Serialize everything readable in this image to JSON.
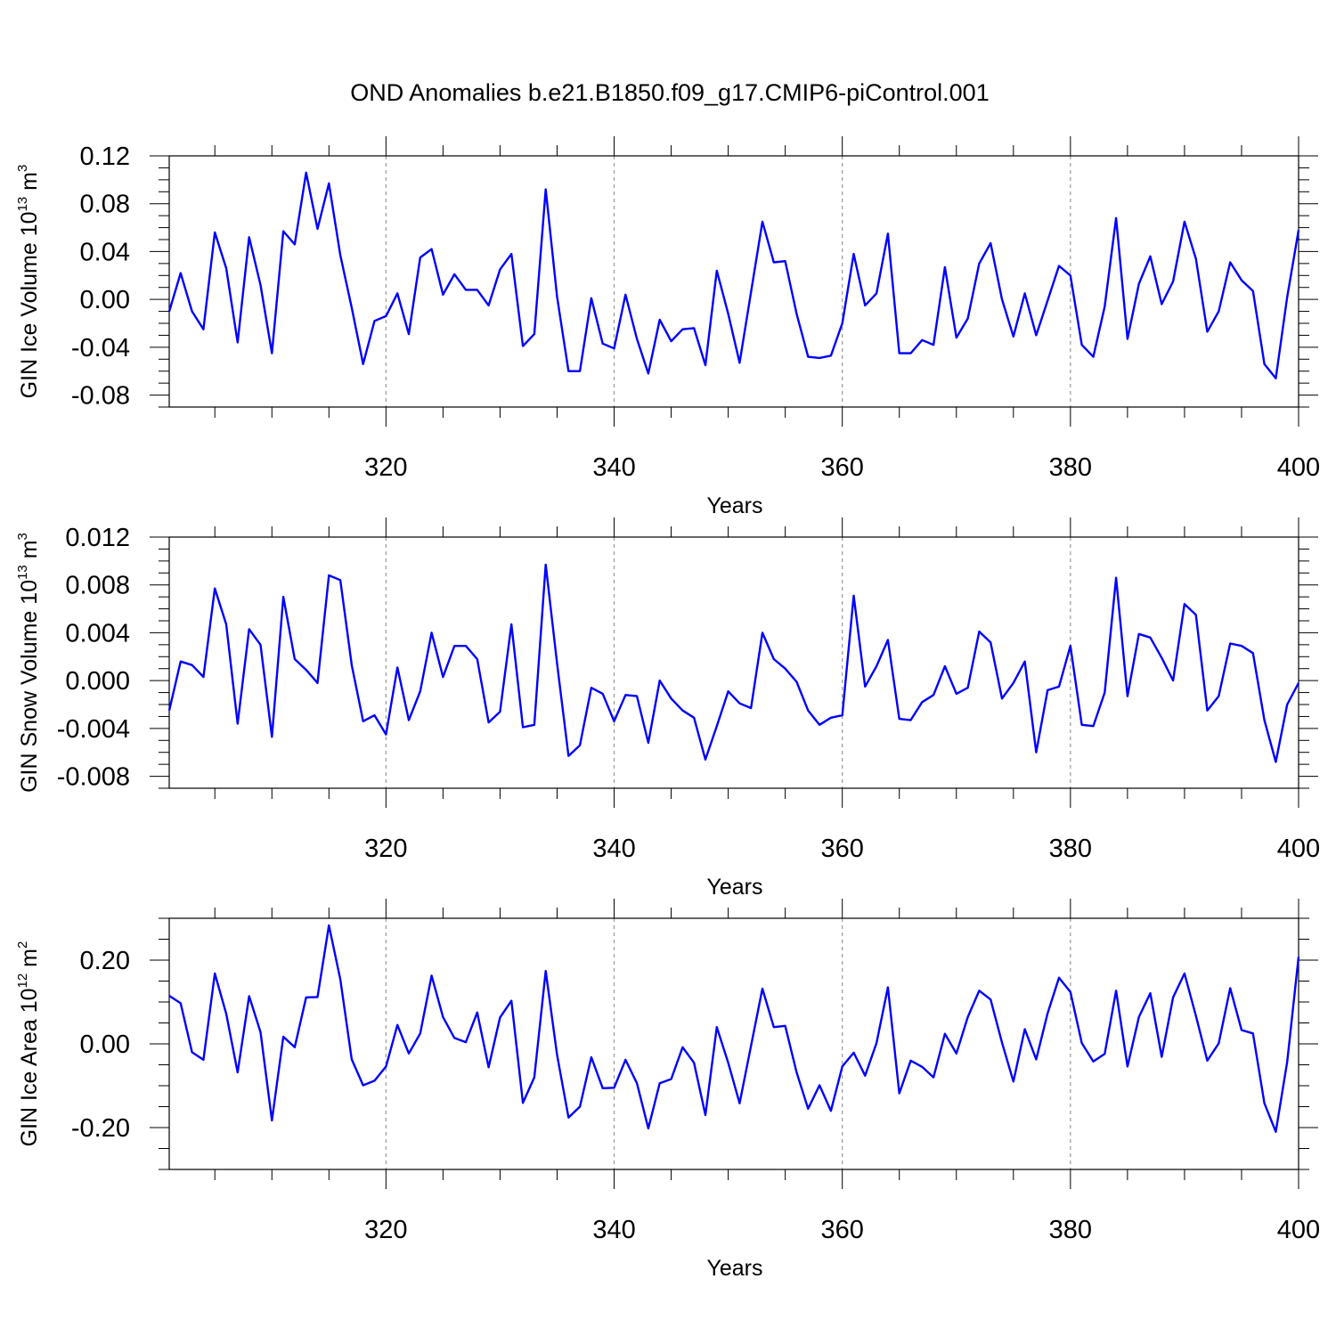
{
  "chart_data": {
    "type": "line",
    "title": "OND Anomalies b.e21.B1850.f09_g17.CMIP6-piControl.001",
    "series_color": "#0000ff",
    "panels": [
      {
        "name": "ice-volume",
        "ylabel_main": "GIN Ice Volume 10",
        "ylabel_sup": "13",
        "ylabel_unit": " m",
        "ylabel_unit_sup": "3",
        "xlabel": "Years",
        "xlim": [
          301,
          400
        ],
        "ylim": [
          -0.09,
          0.12
        ],
        "yticks": [
          -0.08,
          -0.04,
          0.0,
          0.04,
          0.08,
          0.12
        ],
        "yticklabels": [
          "-0.08",
          "-0.04",
          "0.00",
          "0.04",
          "0.08",
          "0.12"
        ],
        "yminor": 0.01,
        "xticks": [
          320,
          340,
          360,
          380,
          400
        ],
        "xticklabels": [
          "320",
          "340",
          "360",
          "380",
          "400"
        ],
        "x_start": 301,
        "values": [
          -0.01,
          0.022,
          -0.01,
          -0.025,
          0.056,
          0.026,
          -0.036,
          0.052,
          0.012,
          -0.045,
          0.057,
          0.046,
          0.106,
          0.059,
          0.097,
          0.037,
          -0.007,
          -0.054,
          -0.018,
          -0.014,
          0.005,
          -0.029,
          0.035,
          0.042,
          0.004,
          0.021,
          0.008,
          0.008,
          -0.005,
          0.025,
          0.038,
          -0.039,
          -0.029,
          0.092,
          0.002,
          -0.06,
          -0.06,
          0.001,
          -0.037,
          -0.041,
          0.004,
          -0.033,
          -0.062,
          -0.017,
          -0.035,
          -0.025,
          -0.024,
          -0.055,
          0.024,
          -0.012,
          -0.053,
          0.006,
          0.065,
          0.031,
          0.032,
          -0.012,
          -0.048,
          -0.049,
          -0.047,
          -0.02,
          0.038,
          -0.005,
          0.005,
          0.055,
          -0.045,
          -0.045,
          -0.034,
          -0.038,
          0.027,
          -0.032,
          -0.016,
          0.03,
          0.047,
          0.0,
          -0.031,
          0.005,
          -0.03,
          -0.001,
          0.028,
          0.02,
          -0.038,
          -0.048,
          -0.006,
          0.068,
          -0.033,
          0.013,
          0.036,
          -0.004,
          0.015,
          0.065,
          0.034,
          -0.027,
          -0.01,
          0.031,
          0.016,
          0.007,
          -0.054,
          -0.066,
          0.002,
          0.058
        ]
      },
      {
        "name": "snow-volume",
        "ylabel_main": "GIN Snow Volume 10",
        "ylabel_sup": "13",
        "ylabel_unit": " m",
        "ylabel_unit_sup": "3",
        "xlabel": "Years",
        "xlim": [
          301,
          400
        ],
        "ylim": [
          -0.009,
          0.012
        ],
        "yticks": [
          -0.008,
          -0.004,
          0.0,
          0.004,
          0.008,
          0.012
        ],
        "yticklabels": [
          "-0.008",
          "-0.004",
          "0.000",
          "0.004",
          "0.008",
          "0.012"
        ],
        "yminor": 0.001,
        "xticks": [
          320,
          340,
          360,
          380,
          400
        ],
        "xticklabels": [
          "320",
          "340",
          "360",
          "380",
          "400"
        ],
        "x_start": 301,
        "values": [
          -0.0025,
          0.0016,
          0.0013,
          0.0003,
          0.0077,
          0.0047,
          -0.0036,
          0.0043,
          0.003,
          -0.0047,
          0.007,
          0.0018,
          0.0009,
          -0.0002,
          0.0088,
          0.0084,
          0.0013,
          -0.0034,
          -0.0029,
          -0.0045,
          0.0011,
          -0.0033,
          -0.0009,
          0.004,
          0.0003,
          0.0029,
          0.0029,
          0.0018,
          -0.0035,
          -0.0026,
          0.0047,
          -0.0039,
          -0.0037,
          0.0097,
          0.0014,
          -0.0063,
          -0.0054,
          -0.0006,
          -0.0011,
          -0.0034,
          -0.0012,
          -0.0013,
          -0.0052,
          0.0,
          -0.0015,
          -0.0025,
          -0.0031,
          -0.0066,
          -0.0038,
          -0.0009,
          -0.0019,
          -0.0023,
          0.004,
          0.0018,
          0.001,
          -0.0001,
          -0.0025,
          -0.0037,
          -0.0031,
          -0.0029,
          0.0071,
          -0.0005,
          0.0012,
          0.0034,
          -0.0032,
          -0.0033,
          -0.0018,
          -0.0012,
          0.0012,
          -0.0011,
          -0.0006,
          0.0041,
          0.0032,
          -0.0015,
          -0.0002,
          0.0016,
          -0.006,
          -0.0008,
          -0.0005,
          0.0029,
          -0.0037,
          -0.0038,
          -0.001,
          0.0086,
          -0.0013,
          0.0039,
          0.0036,
          0.0019,
          0.0,
          0.0064,
          0.0055,
          -0.0025,
          -0.0013,
          0.0031,
          0.0029,
          0.0023,
          -0.0033,
          -0.0068,
          -0.002,
          -0.0002
        ]
      },
      {
        "name": "ice-area",
        "ylabel_main": "GIN Ice Area 10",
        "ylabel_sup": "12",
        "ylabel_unit": " m",
        "ylabel_unit_sup": "2",
        "xlabel": "Years",
        "xlim": [
          301,
          400
        ],
        "ylim": [
          -0.3,
          0.3
        ],
        "yticks": [
          -0.2,
          0.0,
          0.2
        ],
        "yticklabels": [
          "-0.20",
          "0.00",
          "0.20"
        ],
        "yminor": 0.05,
        "xticks": [
          320,
          340,
          360,
          380,
          400
        ],
        "xticklabels": [
          "320",
          "340",
          "360",
          "380",
          "400"
        ],
        "x_start": 301,
        "values": [
          0.115,
          0.097,
          -0.02,
          -0.038,
          0.168,
          0.072,
          -0.068,
          0.114,
          0.028,
          -0.183,
          0.017,
          -0.008,
          0.111,
          0.112,
          0.283,
          0.154,
          -0.037,
          -0.099,
          -0.088,
          -0.054,
          0.045,
          -0.023,
          0.025,
          0.163,
          0.064,
          0.014,
          0.004,
          0.075,
          -0.056,
          0.063,
          0.103,
          -0.141,
          -0.08,
          0.174,
          -0.027,
          -0.176,
          -0.15,
          -0.032,
          -0.106,
          -0.105,
          -0.038,
          -0.094,
          -0.202,
          -0.094,
          -0.084,
          -0.008,
          -0.045,
          -0.17,
          0.04,
          -0.045,
          -0.142,
          -0.005,
          0.132,
          0.04,
          0.043,
          -0.068,
          -0.155,
          -0.099,
          -0.16,
          -0.054,
          -0.021,
          -0.076,
          0.002,
          0.135,
          -0.118,
          -0.04,
          -0.055,
          -0.08,
          0.024,
          -0.023,
          0.064,
          0.127,
          0.106,
          0.003,
          -0.09,
          0.035,
          -0.037,
          0.073,
          0.158,
          0.124,
          0.002,
          -0.042,
          -0.024,
          0.127,
          -0.054,
          0.064,
          0.121,
          -0.031,
          0.111,
          0.168,
          0.067,
          -0.04,
          0.001,
          0.133,
          0.033,
          0.025,
          -0.142,
          -0.21,
          -0.043,
          0.208
        ]
      }
    ]
  }
}
